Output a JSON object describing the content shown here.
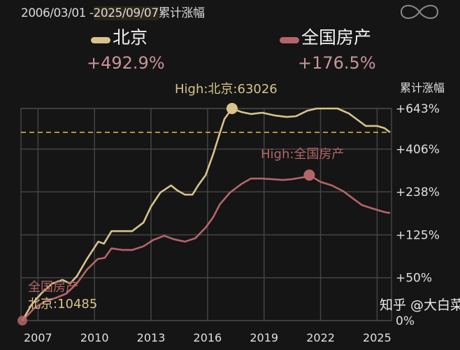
{
  "header": {
    "range_start": "2006/03/01 -",
    "range_end": "2025/09/07",
    "range_suffix": "累计涨幅",
    "icon": "infinity-icon"
  },
  "legend": [
    {
      "name": "北京",
      "value": "+492.9%",
      "color": "#d9c38c"
    },
    {
      "name": "全国房产",
      "value": "+176.5%",
      "color": "#b5656a"
    }
  ],
  "annotations": {
    "high_beijing": "High:北京:63026",
    "high_national": "High:全国房产",
    "low_label_a": "北京:10485",
    "low_label_b": "全国房产"
  },
  "watermark": "知乎 @大白菜",
  "chart_data": {
    "type": "line",
    "ylabel": "累计涨幅",
    "y_scale": "log(1+value)",
    "ylim": [
      0,
      643
    ],
    "y_ticks": [
      "+643%",
      "+406%",
      "+238%",
      "+125%",
      "+50%",
      "0%"
    ],
    "y_tick_values": [
      643,
      406,
      238,
      125,
      50,
      0
    ],
    "x_ticks": [
      "2007",
      "2010",
      "2013",
      "2016",
      "2019",
      "2022",
      "2025"
    ],
    "xlim": [
      2006.17,
      2025.69
    ],
    "grid": true,
    "reference_line": {
      "value": 492.9,
      "style": "dashed",
      "color": "#c9a43a"
    },
    "series": [
      {
        "name": "北京",
        "color": "#d9c38c",
        "x": [
          2006.17,
          2006.65,
          2007.2,
          2007.76,
          2008.3,
          2008.7,
          2009.06,
          2009.6,
          2010.2,
          2010.5,
          2010.9,
          2011.5,
          2012.0,
          2012.6,
          2013.0,
          2013.5,
          2014.06,
          2014.4,
          2014.8,
          2015.2,
          2015.5,
          2015.9,
          2016.3,
          2016.65,
          2016.9,
          2017.3,
          2017.8,
          2018.3,
          2018.9,
          2019.6,
          2020.2,
          2020.7,
          2021.3,
          2021.8,
          2022.4,
          2022.9,
          2023.5,
          2024.0,
          2024.4,
          2025.0,
          2025.4,
          2025.69
        ],
        "y": [
          0,
          16,
          30,
          42,
          47,
          42,
          52,
          79,
          111,
          107,
          133,
          133,
          133,
          153,
          194,
          236,
          259,
          242,
          229,
          229,
          259,
          296,
          383,
          489,
          573,
          643,
          619,
          605,
          614,
          595,
          586,
          591,
          628,
          643,
          643,
          643,
          609,
          564,
          530,
          530,
          517,
          492.9
        ],
        "high": {
          "x": 2017.3,
          "y": 643
        }
      },
      {
        "name": "全国房产",
        "color": "#b5656a",
        "x": [
          2006.17,
          2006.83,
          2007.39,
          2007.95,
          2008.5,
          2009.06,
          2009.6,
          2010.17,
          2010.54,
          2010.9,
          2011.5,
          2012.0,
          2012.6,
          2013.1,
          2013.7,
          2014.2,
          2014.8,
          2015.35,
          2015.9,
          2016.3,
          2016.65,
          2017.2,
          2017.8,
          2018.3,
          2018.9,
          2019.4,
          2020.0,
          2020.5,
          2021.1,
          2021.4,
          2022.0,
          2022.6,
          2023.2,
          2023.7,
          2024.2,
          2024.8,
          2025.4,
          2025.69
        ],
        "y": [
          0,
          13,
          20,
          24,
          29,
          42,
          62,
          79,
          81,
          98,
          95,
          95,
          102,
          114,
          123,
          116,
          111,
          118,
          141,
          166,
          200,
          236,
          264,
          283,
          283,
          281,
          278,
          281,
          288,
          296,
          271,
          259,
          240,
          218,
          198,
          188,
          179,
          176.5
        ],
        "high": {
          "x": 2021.4,
          "y": 296
        }
      }
    ]
  }
}
